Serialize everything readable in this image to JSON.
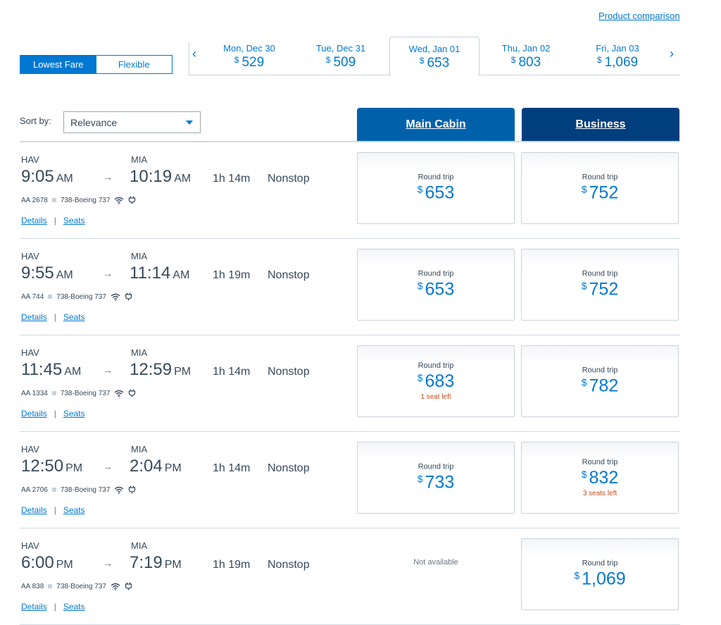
{
  "header": {
    "product_comparison": "Product comparison"
  },
  "fare_toggle": {
    "lowest_fare": "Lowest Fare",
    "flexible": "Flexible"
  },
  "dates": [
    {
      "label": "Mon, Dec 30",
      "currency": "$",
      "price": "529",
      "selected": false
    },
    {
      "label": "Tue, Dec 31",
      "currency": "$",
      "price": "509",
      "selected": false
    },
    {
      "label": "Wed, Jan 01",
      "currency": "$",
      "price": "653",
      "selected": true
    },
    {
      "label": "Thu, Jan 02",
      "currency": "$",
      "price": "803",
      "selected": false
    },
    {
      "label": "Fri, Jan 03",
      "currency": "$",
      "price": "1,069",
      "selected": false
    }
  ],
  "sort": {
    "label": "Sort by:",
    "value": "Relevance"
  },
  "cabins": {
    "main": "Main Cabin",
    "business": "Business"
  },
  "labels": {
    "round_trip": "Round trip",
    "currency": "$",
    "details": "Details",
    "seats": "Seats",
    "not_available": "Not available"
  },
  "flights": [
    {
      "origin": "HAV",
      "destination": "MIA",
      "dep_time": "9:05",
      "dep_ampm": "AM",
      "arr_time": "10:19",
      "arr_ampm": "AM",
      "duration": "1h 14m",
      "stops": "Nonstop",
      "flight_number": "AA 2678",
      "aircraft": "738-Boeing 737",
      "main": {
        "price": "653",
        "seats_left": ""
      },
      "business": {
        "price": "752",
        "seats_left": ""
      }
    },
    {
      "origin": "HAV",
      "destination": "MIA",
      "dep_time": "9:55",
      "dep_ampm": "AM",
      "arr_time": "11:14",
      "arr_ampm": "AM",
      "duration": "1h 19m",
      "stops": "Nonstop",
      "flight_number": "AA 744",
      "aircraft": "738-Boeing 737",
      "main": {
        "price": "653",
        "seats_left": ""
      },
      "business": {
        "price": "752",
        "seats_left": ""
      }
    },
    {
      "origin": "HAV",
      "destination": "MIA",
      "dep_time": "11:45",
      "dep_ampm": "AM",
      "arr_time": "12:59",
      "arr_ampm": "PM",
      "duration": "1h 14m",
      "stops": "Nonstop",
      "flight_number": "AA 1334",
      "aircraft": "738-Boeing 737",
      "main": {
        "price": "683",
        "seats_left": "1 seat left"
      },
      "business": {
        "price": "782",
        "seats_left": ""
      }
    },
    {
      "origin": "HAV",
      "destination": "MIA",
      "dep_time": "12:50",
      "dep_ampm": "PM",
      "arr_time": "2:04",
      "arr_ampm": "PM",
      "duration": "1h 14m",
      "stops": "Nonstop",
      "flight_number": "AA 2706",
      "aircraft": "738-Boeing 737",
      "main": {
        "price": "733",
        "seats_left": ""
      },
      "business": {
        "price": "832",
        "seats_left": "3 seats left"
      }
    },
    {
      "origin": "HAV",
      "destination": "MIA",
      "dep_time": "6:00",
      "dep_ampm": "PM",
      "arr_time": "7:19",
      "arr_ampm": "PM",
      "duration": "1h 19m",
      "stops": "Nonstop",
      "flight_number": "AA 838",
      "aircraft": "738-Boeing 737",
      "main": null,
      "business": {
        "price": "1,069",
        "seats_left": ""
      }
    }
  ],
  "icons": {
    "wifi": "wifi-icon",
    "power": "power-icon",
    "prev": "chevron-left-icon",
    "next": "chevron-right-icon"
  },
  "colors": {
    "accent": "#0078d2",
    "main_cabin": "#0061ab",
    "business": "#003e7e",
    "warning": "#c94b1a"
  }
}
